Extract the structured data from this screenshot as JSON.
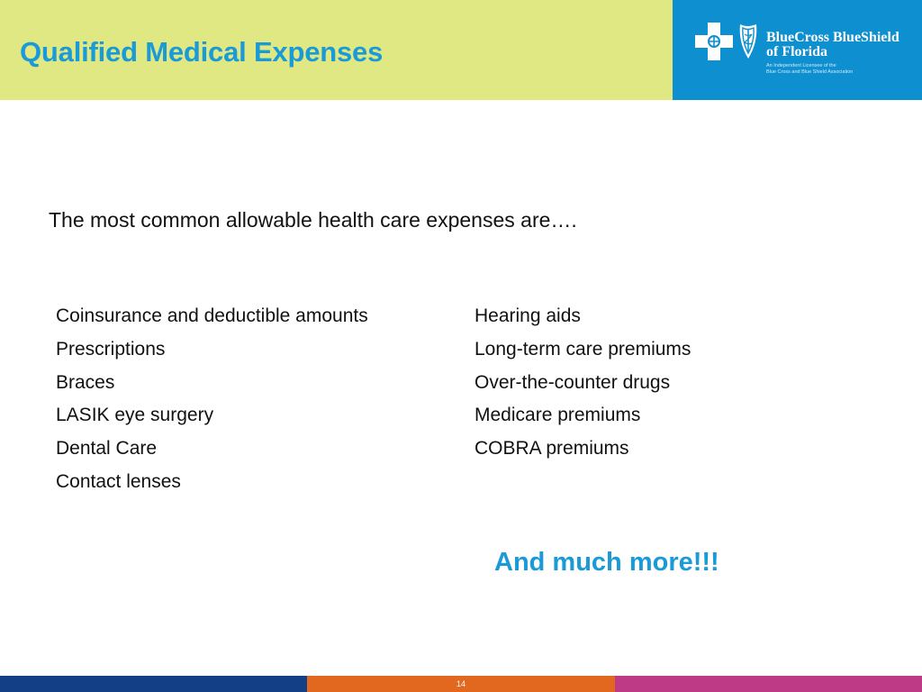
{
  "header": {
    "title": "Qualified Medical Expenses"
  },
  "logo": {
    "name_line1": "BlueCross BlueShield",
    "name_line2": "of Florida",
    "tagline_line1": "An Independent Licensee of the",
    "tagline_line2": "Blue Cross and Blue Shield Association"
  },
  "content": {
    "intro": "The most common allowable health care expenses are….",
    "left_items": [
      "Coinsurance and deductible amounts",
      "Prescriptions",
      "Braces",
      "LASIK eye surgery",
      "Dental Care",
      "Contact lenses"
    ],
    "right_items": [
      "Hearing aids",
      "Long-term care premiums",
      "Over-the-counter drugs",
      "Medicare premiums",
      "COBRA premiums"
    ],
    "emphasis": "And much more!!!"
  },
  "footer": {
    "page_number": "14"
  },
  "colors": {
    "header_band": "#dfe882",
    "title": "#1a9ad6",
    "logo_panel": "#0d8fd0",
    "footer_blue": "#123f85",
    "footer_orange": "#e2681f",
    "footer_magenta": "#bf3a86"
  },
  "icons": {
    "cross": "blue-cross-logo-icon",
    "shield": "blue-shield-logo-icon"
  }
}
